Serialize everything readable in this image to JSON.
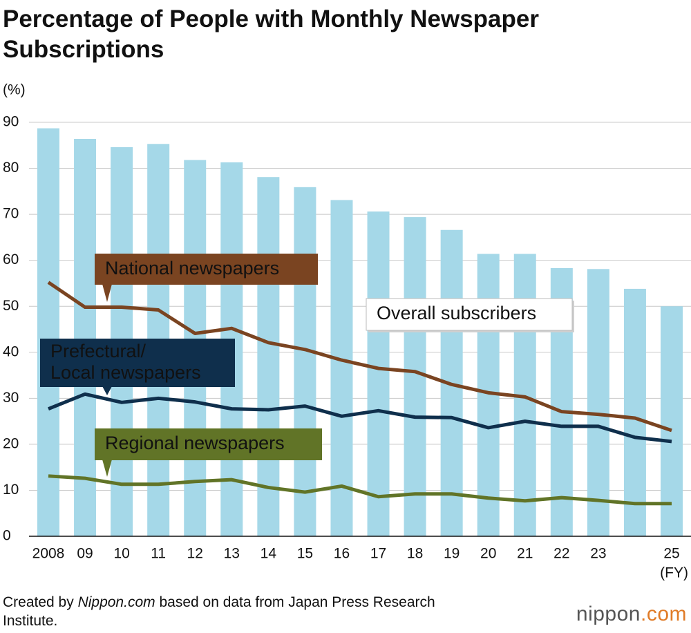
{
  "chart_data": {
    "type": "combo",
    "title": "Percentage of People with Monthly Newspaper Subscriptions",
    "y_unit": "(%)",
    "x_unit": "(FY)",
    "categories": [
      "2008",
      "09",
      "10",
      "11",
      "12",
      "13",
      "14",
      "15",
      "16",
      "17",
      "18",
      "19",
      "20",
      "21",
      "22",
      "23",
      null,
      "25"
    ],
    "ylim": [
      0,
      90
    ],
    "yticks": [
      0,
      10,
      20,
      30,
      40,
      50,
      60,
      70,
      80,
      90
    ],
    "grid": true,
    "series": [
      {
        "name": "Overall subscribers",
        "mark": "bar",
        "color": "#a5d8e8",
        "label_color": "#ffffff",
        "text_color": "#111111",
        "values": [
          88.7,
          86.4,
          84.6,
          85.3,
          81.8,
          81.3,
          78.1,
          75.9,
          73.1,
          70.6,
          69.4,
          66.6,
          61.4,
          61.4,
          58.3,
          58.1,
          53.8,
          50.0
        ]
      },
      {
        "name": "National newspapers",
        "mark": "line",
        "color": "#7a4421",
        "label_color": "#7a4421",
        "text_color": "#ffffff",
        "values": [
          55.2,
          49.8,
          49.8,
          49.2,
          44.1,
          45.2,
          42.1,
          40.6,
          38.3,
          36.5,
          35.8,
          33.0,
          31.2,
          30.3,
          27.1,
          26.5,
          25.7,
          23.0
        ]
      },
      {
        "name": "Prefectural/\nLocal newspapers",
        "mark": "line",
        "color": "#0f2f4c",
        "label_color": "#0f2f4c",
        "text_color": "#ffffff",
        "values": [
          27.7,
          30.9,
          29.1,
          30.0,
          29.2,
          27.7,
          27.5,
          28.3,
          26.1,
          27.3,
          25.9,
          25.8,
          23.6,
          25.0,
          23.9,
          23.9,
          21.5,
          20.6
        ]
      },
      {
        "name": "Regional newspapers",
        "mark": "line",
        "color": "#617427",
        "label_color": "#617427",
        "text_color": "#ffffff",
        "values": [
          13.1,
          12.6,
          11.3,
          11.3,
          11.9,
          12.3,
          10.6,
          9.6,
          10.9,
          8.6,
          9.2,
          9.2,
          8.3,
          7.7,
          8.4,
          7.8,
          7.1,
          7.1
        ]
      }
    ]
  },
  "footer": {
    "source": [
      "Created by ",
      "Nippon.com",
      " based on data from Japan Press Research Institute."
    ],
    "logo": [
      "nippon",
      ".com"
    ]
  }
}
